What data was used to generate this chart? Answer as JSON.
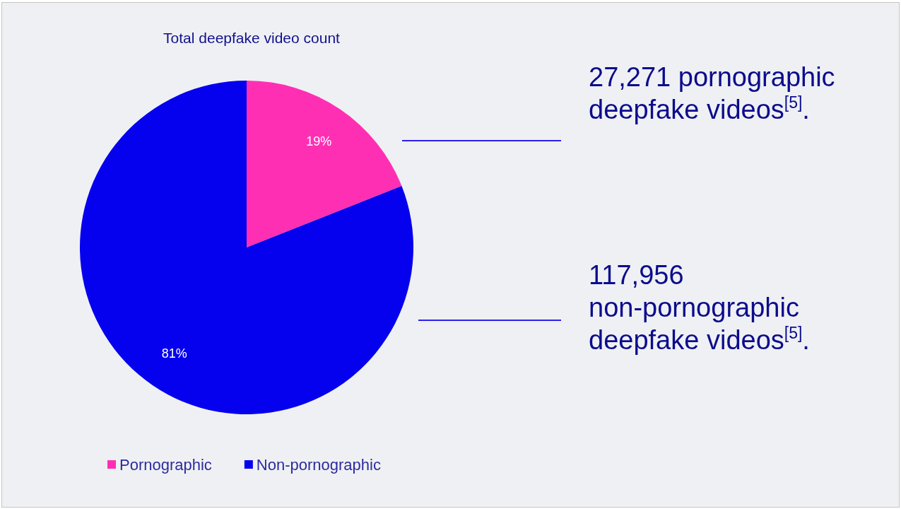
{
  "chart_data": {
    "type": "pie",
    "title": "Total deepfake video count",
    "categories": [
      "Pornographic",
      "Non-pornographic"
    ],
    "values": [
      19,
      81
    ],
    "colors": [
      "#ff2fb4",
      "#0500ee"
    ],
    "value_labels": [
      "19%",
      "81%"
    ],
    "legend": "bottom left",
    "annotations": [
      "27,271 pornographic deepfake videos$^{[5]}$.",
      "117,956 non-pornographic deepfake videos$^{[5]}$."
    ]
  }
}
